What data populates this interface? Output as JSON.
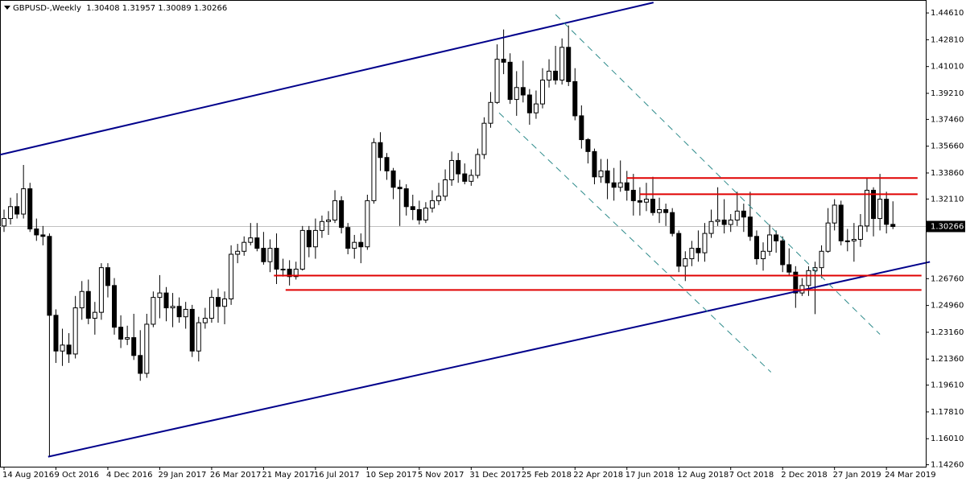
{
  "chart_data": {
    "type": "candlestick",
    "title": "GBPUSD-,Weekly  1.30408 1.31957 1.30089 1.30266",
    "categories": [
      "14 Aug 2016",
      null,
      null,
      null,
      null,
      null,
      null,
      null,
      "9 Oct 2016",
      null,
      null,
      null,
      null,
      null,
      null,
      null,
      "4 Dec 2016",
      null,
      null,
      null,
      null,
      null,
      null,
      null,
      "29 Jan 2017",
      null,
      null,
      null,
      null,
      null,
      null,
      null,
      "26 Mar 2017",
      null,
      null,
      null,
      null,
      null,
      null,
      null,
      "21 May 2017",
      null,
      null,
      null,
      null,
      null,
      null,
      null,
      "16 Jul 2017",
      null,
      null,
      null,
      null,
      null,
      null,
      null,
      "10 Sep 2017",
      null,
      null,
      null,
      null,
      null,
      null,
      null,
      "5 Nov 2017",
      null,
      null,
      null,
      null,
      null,
      null,
      null,
      "31 Dec 2017",
      null,
      null,
      null,
      null,
      null,
      null,
      null,
      "25 Feb 2018",
      null,
      null,
      null,
      null,
      null,
      null,
      null,
      "22 Apr 2018",
      null,
      null,
      null,
      null,
      null,
      null,
      null,
      "17 Jun 2018",
      null,
      null,
      null,
      null,
      null,
      null,
      null,
      "12 Aug 2018",
      null,
      null,
      null,
      null,
      null,
      null,
      null,
      "7 Oct 2018",
      null,
      null,
      null,
      null,
      null,
      null,
      null,
      "2 Dec 2018",
      null,
      null,
      null,
      null,
      null,
      null,
      null,
      "27 Jan 2019",
      null,
      null,
      null,
      null,
      null,
      null,
      null,
      "24 Mar 2019",
      null
    ],
    "ohlc": [
      [
        1.303,
        1.314,
        1.299,
        1.308
      ],
      [
        1.308,
        1.322,
        1.304,
        1.316
      ],
      [
        1.316,
        1.325,
        1.308,
        1.311
      ],
      [
        1.311,
        1.344,
        1.308,
        1.328
      ],
      [
        1.328,
        1.332,
        1.299,
        1.301
      ],
      [
        1.301,
        1.308,
        1.293,
        1.297
      ],
      [
        1.297,
        1.303,
        1.29,
        1.296
      ],
      [
        1.296,
        1.298,
        1.148,
        1.243
      ],
      [
        1.243,
        1.247,
        1.211,
        1.219
      ],
      [
        1.219,
        1.234,
        1.209,
        1.223
      ],
      [
        1.223,
        1.231,
        1.211,
        1.217
      ],
      [
        1.217,
        1.256,
        1.214,
        1.248
      ],
      [
        1.248,
        1.266,
        1.24,
        1.259
      ],
      [
        1.259,
        1.267,
        1.237,
        1.241
      ],
      [
        1.241,
        1.252,
        1.23,
        1.245
      ],
      [
        1.245,
        1.278,
        1.24,
        1.275
      ],
      [
        1.275,
        1.278,
        1.255,
        1.263
      ],
      [
        1.263,
        1.268,
        1.23,
        1.235
      ],
      [
        1.235,
        1.243,
        1.221,
        1.227
      ],
      [
        1.227,
        1.236,
        1.223,
        1.228
      ],
      [
        1.228,
        1.244,
        1.213,
        1.216
      ],
      [
        1.216,
        1.233,
        1.199,
        1.204
      ],
      [
        1.204,
        1.244,
        1.201,
        1.237
      ],
      [
        1.237,
        1.259,
        1.235,
        1.255
      ],
      [
        1.255,
        1.27,
        1.241,
        1.258
      ],
      [
        1.258,
        1.262,
        1.239,
        1.248
      ],
      [
        1.248,
        1.258,
        1.235,
        1.249
      ],
      [
        1.249,
        1.255,
        1.238,
        1.242
      ],
      [
        1.242,
        1.252,
        1.234,
        1.247
      ],
      [
        1.247,
        1.25,
        1.215,
        1.219
      ],
      [
        1.219,
        1.242,
        1.212,
        1.238
      ],
      [
        1.238,
        1.248,
        1.234,
        1.241
      ],
      [
        1.241,
        1.26,
        1.238,
        1.255
      ],
      [
        1.255,
        1.261,
        1.238,
        1.249
      ],
      [
        1.249,
        1.259,
        1.237,
        1.254
      ],
      [
        1.254,
        1.29,
        1.25,
        1.284
      ],
      [
        1.284,
        1.291,
        1.278,
        1.286
      ],
      [
        1.286,
        1.296,
        1.283,
        1.292
      ],
      [
        1.292,
        1.305,
        1.29,
        1.295
      ],
      [
        1.295,
        1.305,
        1.286,
        1.288
      ],
      [
        1.288,
        1.299,
        1.277,
        1.279
      ],
      [
        1.279,
        1.294,
        1.272,
        1.288
      ],
      [
        1.288,
        1.298,
        1.264,
        1.274
      ],
      [
        1.274,
        1.281,
        1.269,
        1.274
      ],
      [
        1.274,
        1.28,
        1.263,
        1.269
      ],
      [
        1.269,
        1.279,
        1.267,
        1.274
      ],
      [
        1.274,
        1.303,
        1.273,
        1.3
      ],
      [
        1.3,
        1.303,
        1.282,
        1.289
      ],
      [
        1.289,
        1.308,
        1.281,
        1.3
      ],
      [
        1.3,
        1.31,
        1.295,
        1.306
      ],
      [
        1.306,
        1.313,
        1.297,
        1.307
      ],
      [
        1.307,
        1.327,
        1.305,
        1.32
      ],
      [
        1.32,
        1.323,
        1.298,
        1.302
      ],
      [
        1.302,
        1.305,
        1.284,
        1.288
      ],
      [
        1.288,
        1.297,
        1.281,
        1.292
      ],
      [
        1.292,
        1.298,
        1.278,
        1.289
      ],
      [
        1.289,
        1.324,
        1.287,
        1.32
      ],
      [
        1.32,
        1.362,
        1.318,
        1.359
      ],
      [
        1.359,
        1.366,
        1.34,
        1.349
      ],
      [
        1.349,
        1.352,
        1.334,
        1.34
      ],
      [
        1.34,
        1.342,
        1.321,
        1.329
      ],
      [
        1.329,
        1.334,
        1.303,
        1.328
      ],
      [
        1.328,
        1.331,
        1.31,
        1.316
      ],
      [
        1.316,
        1.324,
        1.307,
        1.314
      ],
      [
        1.314,
        1.32,
        1.304,
        1.307
      ],
      [
        1.307,
        1.319,
        1.305,
        1.315
      ],
      [
        1.315,
        1.327,
        1.312,
        1.32
      ],
      [
        1.32,
        1.332,
        1.317,
        1.323
      ],
      [
        1.323,
        1.341,
        1.32,
        1.334
      ],
      [
        1.334,
        1.353,
        1.33,
        1.347
      ],
      [
        1.347,
        1.352,
        1.332,
        1.338
      ],
      [
        1.338,
        1.345,
        1.331,
        1.333
      ],
      [
        1.333,
        1.341,
        1.33,
        1.337
      ],
      [
        1.337,
        1.355,
        1.335,
        1.351
      ],
      [
        1.351,
        1.376,
        1.348,
        1.372
      ],
      [
        1.372,
        1.393,
        1.369,
        1.386
      ],
      [
        1.386,
        1.425,
        1.385,
        1.415
      ],
      [
        1.415,
        1.435,
        1.405,
        1.413
      ],
      [
        1.413,
        1.419,
        1.385,
        1.388
      ],
      [
        1.388,
        1.407,
        1.377,
        1.396
      ],
      [
        1.396,
        1.414,
        1.386,
        1.391
      ],
      [
        1.391,
        1.395,
        1.371,
        1.379
      ],
      [
        1.379,
        1.394,
        1.375,
        1.385
      ],
      [
        1.385,
        1.409,
        1.382,
        1.401
      ],
      [
        1.401,
        1.415,
        1.396,
        1.407
      ],
      [
        1.407,
        1.424,
        1.398,
        1.401
      ],
      [
        1.401,
        1.429,
        1.398,
        1.423
      ],
      [
        1.423,
        1.4377,
        1.397,
        1.4
      ],
      [
        1.4,
        1.409,
        1.374,
        1.377
      ],
      [
        1.377,
        1.384,
        1.355,
        1.361
      ],
      [
        1.361,
        1.362,
        1.345,
        1.353
      ],
      [
        1.353,
        1.355,
        1.331,
        1.336
      ],
      [
        1.336,
        1.348,
        1.332,
        1.34
      ],
      [
        1.34,
        1.348,
        1.321,
        1.332
      ],
      [
        1.332,
        1.342,
        1.32,
        1.329
      ],
      [
        1.329,
        1.347,
        1.326,
        1.332
      ],
      [
        1.332,
        1.34,
        1.32,
        1.327
      ],
      [
        1.327,
        1.338,
        1.31,
        1.32
      ],
      [
        1.32,
        1.329,
        1.31,
        1.319
      ],
      [
        1.319,
        1.332,
        1.313,
        1.321
      ],
      [
        1.321,
        1.336,
        1.31,
        1.312
      ],
      [
        1.312,
        1.322,
        1.305,
        1.314
      ],
      [
        1.314,
        1.318,
        1.303,
        1.312
      ],
      [
        1.312,
        1.315,
        1.296,
        1.298
      ],
      [
        1.298,
        1.3,
        1.272,
        1.276
      ],
      [
        1.276,
        1.286,
        1.266,
        1.281
      ],
      [
        1.281,
        1.293,
        1.276,
        1.288
      ],
      [
        1.288,
        1.3,
        1.279,
        1.285
      ],
      [
        1.285,
        1.305,
        1.279,
        1.298
      ],
      [
        1.298,
        1.314,
        1.295,
        1.306
      ],
      [
        1.306,
        1.329,
        1.303,
        1.307
      ],
      [
        1.307,
        1.321,
        1.298,
        1.304
      ],
      [
        1.304,
        1.311,
        1.299,
        1.307
      ],
      [
        1.307,
        1.326,
        1.303,
        1.313
      ],
      [
        1.313,
        1.318,
        1.299,
        1.309
      ],
      [
        1.309,
        1.326,
        1.293,
        1.296
      ],
      [
        1.296,
        1.3,
        1.277,
        1.281
      ],
      [
        1.281,
        1.292,
        1.273,
        1.286
      ],
      [
        1.286,
        1.304,
        1.283,
        1.297
      ],
      [
        1.297,
        1.3,
        1.285,
        1.293
      ],
      [
        1.293,
        1.296,
        1.272,
        1.277
      ],
      [
        1.277,
        1.288,
        1.27,
        1.272
      ],
      [
        1.272,
        1.276,
        1.248,
        1.258
      ],
      [
        1.258,
        1.268,
        1.256,
        1.263
      ],
      [
        1.263,
        1.276,
        1.256,
        1.273
      ],
      [
        1.273,
        1.279,
        1.2438,
        1.275
      ],
      [
        1.275,
        1.29,
        1.268,
        1.286
      ],
      [
        1.286,
        1.315,
        1.285,
        1.305
      ],
      [
        1.305,
        1.321,
        1.3,
        1.317
      ],
      [
        1.317,
        1.32,
        1.29,
        1.293
      ],
      [
        1.293,
        1.301,
        1.286,
        1.293
      ],
      [
        1.293,
        1.305,
        1.279,
        1.294
      ],
      [
        1.294,
        1.311,
        1.289,
        1.303
      ],
      [
        1.303,
        1.335,
        1.299,
        1.327
      ],
      [
        1.327,
        1.329,
        1.296,
        1.308
      ],
      [
        1.308,
        1.338,
        1.3,
        1.321
      ],
      [
        1.321,
        1.326,
        1.298,
        1.3041
      ],
      [
        1.30408,
        1.31957,
        1.30089,
        1.30266
      ]
    ],
    "ylim": [
      1.1413,
      1.4548
    ],
    "yticks": [
      {
        "value": 1.4461,
        "label": "1.44610"
      },
      {
        "value": 1.4281,
        "label": "1.42810"
      },
      {
        "value": 1.4101,
        "label": "1.41010"
      },
      {
        "value": 1.3921,
        "label": "1.39210"
      },
      {
        "value": 1.3746,
        "label": "1.37460"
      },
      {
        "value": 1.3566,
        "label": "1.35660"
      },
      {
        "value": 1.3386,
        "label": "1.33860"
      },
      {
        "value": 1.3211,
        "label": "1.32110"
      },
      {
        "value": 1.2676,
        "label": "1.26760"
      },
      {
        "value": 1.2496,
        "label": "1.24960"
      },
      {
        "value": 1.2316,
        "label": "1.23160"
      },
      {
        "value": 1.2136,
        "label": "1.21360"
      },
      {
        "value": 1.1961,
        "label": "1.19610"
      },
      {
        "value": 1.1781,
        "label": "1.17810"
      },
      {
        "value": 1.1601,
        "label": "1.16010"
      },
      {
        "value": 1.1426,
        "label": "1.14260"
      }
    ],
    "last_price": 1.30266,
    "lines": [
      {
        "color": "#00008b",
        "style": "solid",
        "points": [
          [
            -0.6,
            1.3509
          ],
          [
            100.1,
            1.4531
          ]
        ]
      },
      {
        "color": "#00008b",
        "style": "solid",
        "points": [
          [
            6.8,
            1.148
          ],
          [
            142.7,
            1.2789
          ]
        ]
      },
      {
        "color": "#e00000",
        "style": "solid",
        "points": [
          [
            96,
            1.3352
          ],
          [
            140.8,
            1.3352
          ]
        ]
      },
      {
        "color": "#e00000",
        "style": "solid",
        "points": [
          [
            98,
            1.3243
          ],
          [
            140.8,
            1.3243
          ]
        ]
      },
      {
        "color": "#e00000",
        "style": "solid",
        "points": [
          [
            41.6,
            1.2697
          ],
          [
            141.4,
            1.2697
          ]
        ]
      },
      {
        "color": "#e00000",
        "style": "solid",
        "points": [
          [
            43.4,
            1.26
          ],
          [
            141.4,
            1.26
          ]
        ]
      },
      {
        "color": "#2e8b8b",
        "style": "dashed",
        "points": [
          [
            85,
            1.445
          ],
          [
            135,
            1.2302
          ]
        ]
      },
      {
        "color": "#2e8b8b",
        "style": "dashed",
        "points": [
          [
            76.3,
            1.379
          ],
          [
            118.2,
            1.2048
          ]
        ]
      }
    ]
  }
}
